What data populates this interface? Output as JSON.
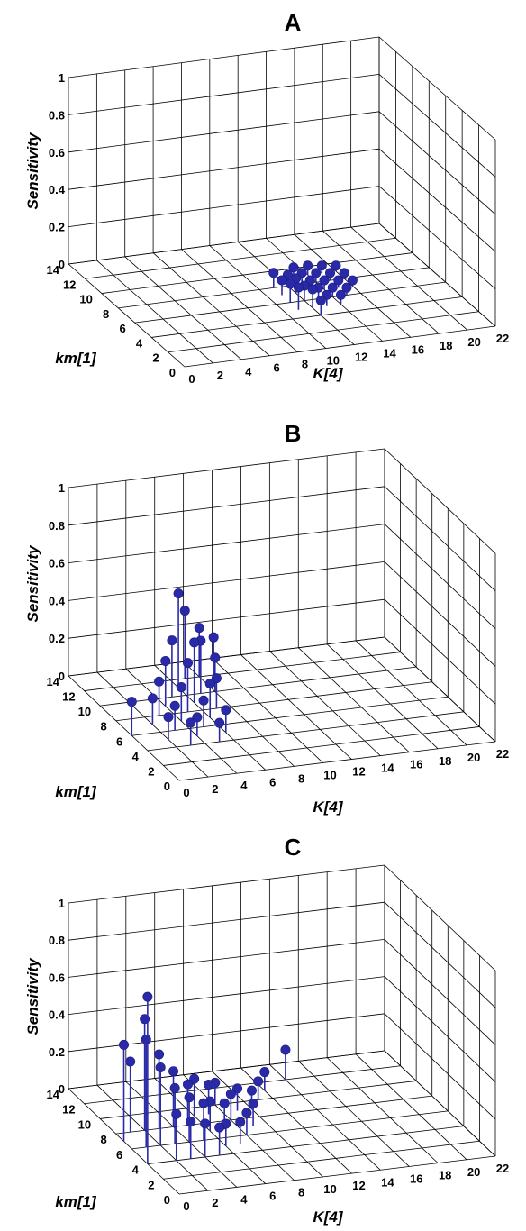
{
  "chart_data": [
    {
      "type": "scatter",
      "subtype": "3d-stem",
      "title": "A",
      "xlabel": "K[4]",
      "ylabel": "km[1]",
      "zlabel": "Sensitivity",
      "xlim": [
        0,
        22
      ],
      "ylim": [
        0,
        14
      ],
      "zlim": [
        0,
        1
      ],
      "xticks": [
        "0",
        "2",
        "4",
        "6",
        "8",
        "10",
        "12",
        "14",
        "16",
        "18",
        "20",
        "22"
      ],
      "yticks": [
        "0",
        "2",
        "4",
        "6",
        "8",
        "10",
        "12",
        "14"
      ],
      "zticks": [
        "0",
        "0.2",
        "0.4",
        "0.6",
        "0.8",
        "1"
      ],
      "grid": true,
      "color": "#2a2aa8",
      "points": [
        {
          "x": 11,
          "y": 5,
          "z": 0.12
        },
        {
          "x": 11,
          "y": 6,
          "z": 0.1
        },
        {
          "x": 11,
          "y": 7,
          "z": 0.08
        },
        {
          "x": 11,
          "y": 8,
          "z": 0.08
        },
        {
          "x": 12,
          "y": 4,
          "z": 0.08
        },
        {
          "x": 12,
          "y": 5,
          "z": 0.1
        },
        {
          "x": 12,
          "y": 6,
          "z": 0.08
        },
        {
          "x": 12,
          "y": 7,
          "z": 0.08
        },
        {
          "x": 12,
          "y": 8,
          "z": 0.06
        },
        {
          "x": 13,
          "y": 5,
          "z": 0.06
        },
        {
          "x": 13,
          "y": 6,
          "z": 0.06
        },
        {
          "x": 13,
          "y": 7,
          "z": 0.06
        },
        {
          "x": 13,
          "y": 8,
          "z": 0.06
        },
        {
          "x": 13,
          "y": 9,
          "z": 0.05
        },
        {
          "x": 14,
          "y": 5,
          "z": 0.05
        },
        {
          "x": 14,
          "y": 6,
          "z": 0.05
        },
        {
          "x": 14,
          "y": 7,
          "z": 0.05
        },
        {
          "x": 14,
          "y": 8,
          "z": 0.05
        },
        {
          "x": 14,
          "y": 9,
          "z": 0.05
        },
        {
          "x": 15,
          "y": 6,
          "z": 0.04
        },
        {
          "x": 15,
          "y": 7,
          "z": 0.04
        },
        {
          "x": 15,
          "y": 8,
          "z": 0.04
        },
        {
          "x": 15,
          "y": 9,
          "z": 0.04
        },
        {
          "x": 16,
          "y": 7,
          "z": 0.03
        },
        {
          "x": 16,
          "y": 8,
          "z": 0.03
        },
        {
          "x": 16,
          "y": 9,
          "z": 0.03
        }
      ]
    },
    {
      "type": "scatter",
      "subtype": "3d-stem",
      "title": "B",
      "xlabel": "K[4]",
      "ylabel": "km[1]",
      "zlabel": "Sensitivity",
      "xlim": [
        0,
        22
      ],
      "ylim": [
        0,
        14
      ],
      "zlim": [
        0,
        1
      ],
      "xticks": [
        "0",
        "2",
        "4",
        "6",
        "8",
        "10",
        "12",
        "14",
        "16",
        "18",
        "20",
        "22"
      ],
      "yticks": [
        "0",
        "2",
        "4",
        "6",
        "8",
        "10",
        "12",
        "14"
      ],
      "zticks": [
        "0",
        "0.2",
        "0.4",
        "0.6",
        "0.8",
        "1"
      ],
      "grid": true,
      "color": "#2a2aa8",
      "points": [
        {
          "x": 0,
          "y": 6,
          "z": 0.18
        },
        {
          "x": 2,
          "y": 7,
          "z": 0.14
        },
        {
          "x": 2,
          "y": 5,
          "z": 0.12
        },
        {
          "x": 3,
          "y": 8,
          "z": 0.18
        },
        {
          "x": 3,
          "y": 6,
          "z": 0.13
        },
        {
          "x": 3,
          "y": 4,
          "z": 0.12
        },
        {
          "x": 4,
          "y": 9,
          "z": 0.24
        },
        {
          "x": 4,
          "y": 7,
          "z": 0.18
        },
        {
          "x": 4,
          "y": 5,
          "z": 0.1
        },
        {
          "x": 5,
          "y": 10,
          "z": 0.3
        },
        {
          "x": 5,
          "y": 8,
          "z": 0.26
        },
        {
          "x": 5,
          "y": 6,
          "z": 0.14
        },
        {
          "x": 5,
          "y": 4,
          "z": 0.1
        },
        {
          "x": 6,
          "y": 11,
          "z": 0.5
        },
        {
          "x": 6,
          "y": 9,
          "z": 0.32
        },
        {
          "x": 6,
          "y": 7,
          "z": 0.18
        },
        {
          "x": 6,
          "y": 5,
          "z": 0.12
        },
        {
          "x": 7,
          "y": 12,
          "z": 0.36
        },
        {
          "x": 7,
          "y": 10,
          "z": 0.28
        },
        {
          "x": 7,
          "y": 8,
          "z": 0.16
        },
        {
          "x": 8,
          "y": 12,
          "z": 0.26
        },
        {
          "x": 8,
          "y": 10,
          "z": 0.18
        },
        {
          "x": 9,
          "y": 12,
          "z": 0.2
        }
      ]
    },
    {
      "type": "scatter",
      "subtype": "3d-stem",
      "title": "C",
      "xlabel": "K[4]",
      "ylabel": "km[1]",
      "zlabel": "Sensitivity",
      "xlim": [
        0,
        22
      ],
      "ylim": [
        0,
        14
      ],
      "zlim": [
        0,
        1
      ],
      "xticks": [
        "0",
        "2",
        "4",
        "6",
        "8",
        "10",
        "12",
        "14",
        "16",
        "18",
        "20",
        "22"
      ],
      "yticks": [
        "0",
        "2",
        "4",
        "6",
        "8",
        "10",
        "12",
        "14"
      ],
      "zticks": [
        "0",
        "0.2",
        "0.4",
        "0.6",
        "0.8",
        "1"
      ],
      "grid": true,
      "color": "#2a2aa8",
      "points": [
        {
          "x": 0,
          "y": 7,
          "z": 0.52
        },
        {
          "x": 0,
          "y": 4,
          "z": 0.9
        },
        {
          "x": 1,
          "y": 6,
          "z": 0.58
        },
        {
          "x": 1,
          "y": 8,
          "z": 0.38
        },
        {
          "x": 2,
          "y": 4,
          "z": 0.25
        },
        {
          "x": 2,
          "y": 6,
          "z": 0.42
        },
        {
          "x": 2,
          "y": 8,
          "z": 0.6
        },
        {
          "x": 3,
          "y": 4,
          "z": 0.2
        },
        {
          "x": 3,
          "y": 6,
          "z": 0.3
        },
        {
          "x": 3,
          "y": 8,
          "z": 0.4
        },
        {
          "x": 4,
          "y": 4,
          "z": 0.18
        },
        {
          "x": 4,
          "y": 6,
          "z": 0.24
        },
        {
          "x": 4,
          "y": 8,
          "z": 0.3
        },
        {
          "x": 5,
          "y": 4,
          "z": 0.15
        },
        {
          "x": 5,
          "y": 6,
          "z": 0.2
        },
        {
          "x": 5,
          "y": 8,
          "z": 0.22
        },
        {
          "x": 6,
          "y": 5,
          "z": 0.12
        },
        {
          "x": 6,
          "y": 7,
          "z": 0.16
        },
        {
          "x": 6,
          "y": 9,
          "z": 0.2
        },
        {
          "x": 7,
          "y": 5,
          "z": 0.12
        },
        {
          "x": 7,
          "y": 7,
          "z": 0.14
        },
        {
          "x": 7,
          "y": 9,
          "z": 0.16
        },
        {
          "x": 8,
          "y": 6,
          "z": 0.12
        },
        {
          "x": 8,
          "y": 8,
          "z": 0.14
        },
        {
          "x": 8,
          "y": 10,
          "z": 0.12
        },
        {
          "x": 9,
          "y": 7,
          "z": 0.12
        },
        {
          "x": 9,
          "y": 9,
          "z": 0.12
        },
        {
          "x": 10,
          "y": 9,
          "z": 0.1
        },
        {
          "x": 11,
          "y": 10,
          "z": 0.1
        },
        {
          "x": 12,
          "y": 11,
          "z": 0.1
        },
        {
          "x": 14,
          "y": 12,
          "z": 0.16
        }
      ]
    }
  ]
}
